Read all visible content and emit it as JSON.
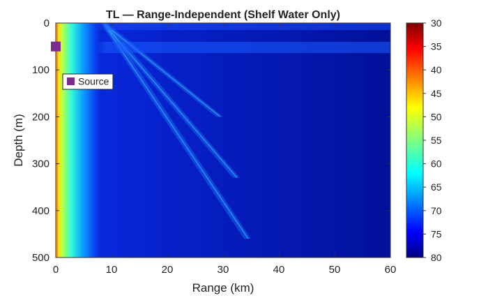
{
  "chart_data": {
    "type": "heatmap",
    "title": "TL — Range-Independent (Shelf Water Only)",
    "xlabel": "Range (km)",
    "ylabel": "Depth (m)",
    "xlim": [
      0,
      60
    ],
    "ylim": [
      0,
      500
    ],
    "y_inverted": true,
    "xticks": [
      0,
      10,
      20,
      30,
      40,
      50,
      60
    ],
    "yticks": [
      0,
      100,
      200,
      300,
      400,
      500
    ],
    "colorbar": {
      "min": 30,
      "max": 80,
      "ticks": [
        30,
        35,
        40,
        45,
        50,
        55,
        60,
        65,
        70,
        75,
        80
      ],
      "colormap": "jet_reversed"
    },
    "source": {
      "label": "Source",
      "range_km": 0,
      "depth_m": 50,
      "marker_color": "#7b2d8e"
    },
    "legend": {
      "position": "top-left",
      "entries": [
        "Source"
      ]
    },
    "ray_bands": [
      {
        "depth_m": [
          0,
          460
        ],
        "range_km": [
          8,
          35
        ]
      },
      {
        "depth_m": [
          0,
          330
        ],
        "range_km": [
          8,
          33
        ]
      },
      {
        "depth_m": [
          0,
          200
        ],
        "range_km": [
          8,
          30
        ]
      }
    ]
  }
}
